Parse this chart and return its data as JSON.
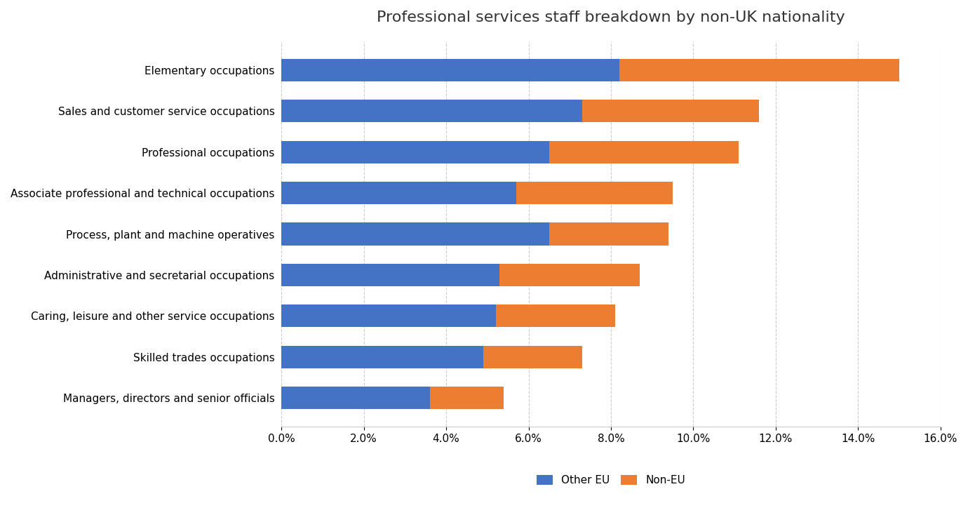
{
  "title": "Professional services staff breakdown by non-UK nationality",
  "categories": [
    "Elementary occupations",
    "Sales and customer service occupations",
    "Professional occupations",
    "Associate professional and technical occupations",
    "Process, plant and machine operatives",
    "Administrative and secretarial occupations",
    "Caring, leisure and other service occupations",
    "Skilled trades occupations",
    "Managers, directors and senior officials"
  ],
  "other_eu": [
    0.082,
    0.073,
    0.065,
    0.057,
    0.065,
    0.053,
    0.052,
    0.049,
    0.036
  ],
  "non_eu": [
    0.068,
    0.043,
    0.046,
    0.038,
    0.029,
    0.034,
    0.029,
    0.024,
    0.018
  ],
  "color_eu": "#4472C4",
  "color_non_eu": "#ED7D31",
  "xlim": [
    0,
    0.16
  ],
  "xtick_vals": [
    0.0,
    0.02,
    0.04,
    0.06,
    0.08,
    0.1,
    0.12,
    0.14,
    0.16
  ],
  "legend_labels": [
    "Other EU",
    "Non-EU"
  ],
  "title_fontsize": 16,
  "tick_fontsize": 11,
  "label_fontsize": 11,
  "background_color": "#ffffff"
}
